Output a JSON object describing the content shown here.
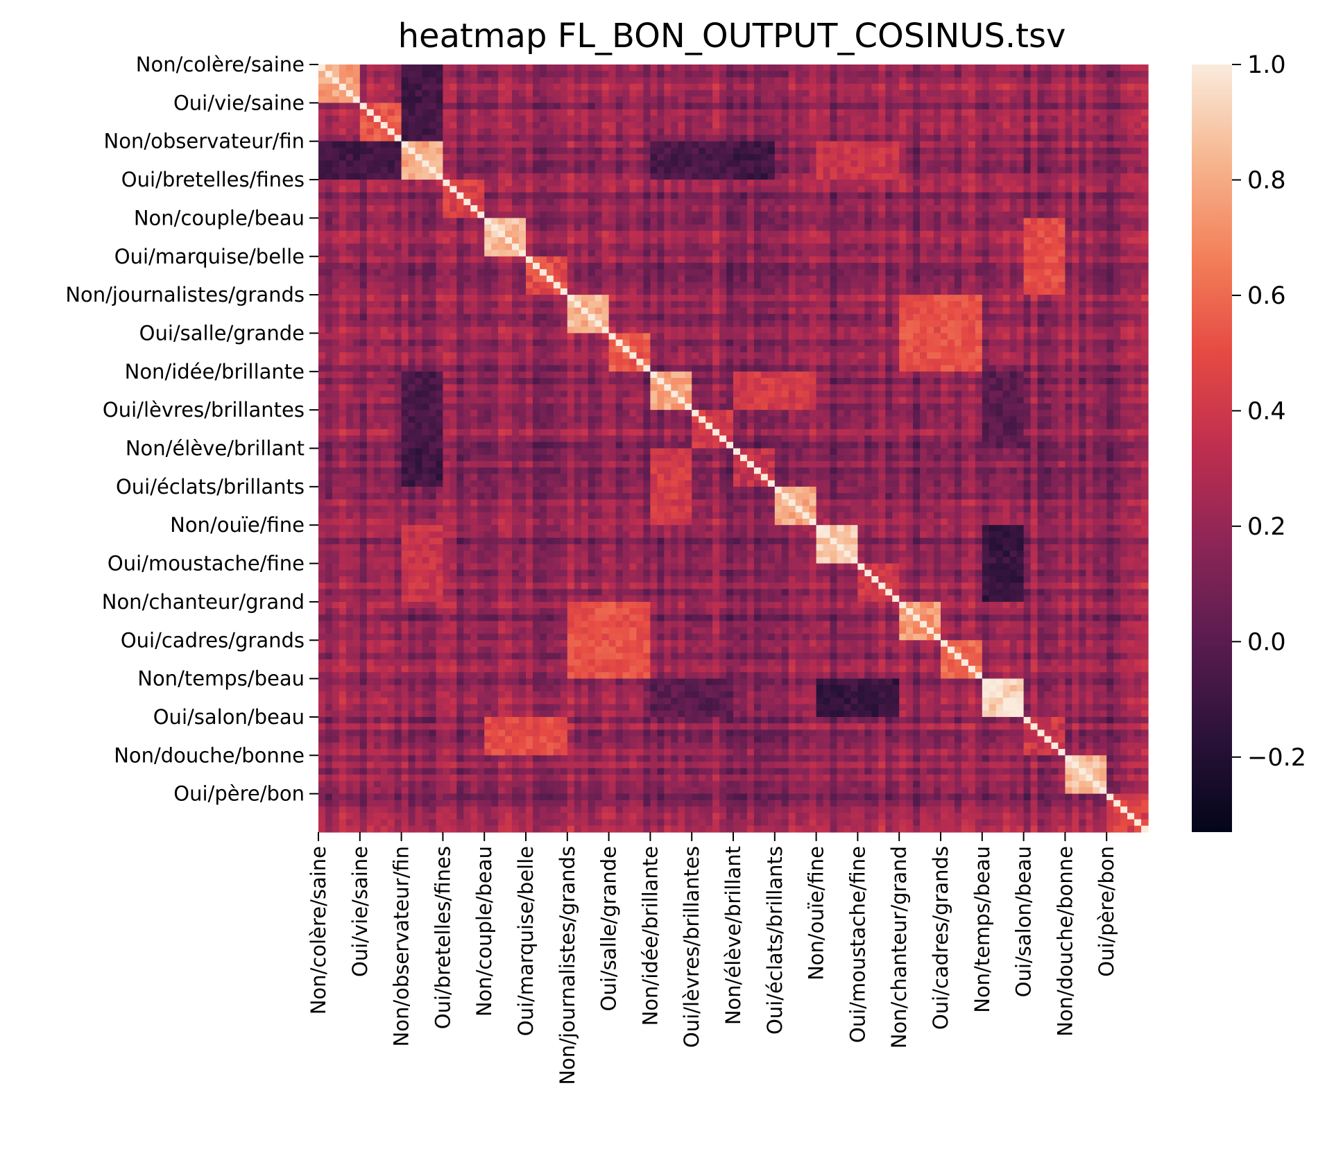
{
  "chart_data": {
    "type": "heatmap",
    "title": "heatmap FL_BON_OUTPUT_COSINUS.tsv",
    "xlabel": "",
    "ylabel": "",
    "n_cells": 120,
    "row_tick_labels": [
      "Non/colère/saine",
      "Oui/vie/saine",
      "Non/observateur/fin",
      "Oui/bretelles/fines",
      "Non/couple/beau",
      "Oui/marquise/belle",
      "Non/journalistes/grands",
      "Oui/salle/grande",
      "Non/idée/brillante",
      "Oui/lèvres/brillantes",
      "Non/élève/brillant",
      "Oui/éclats/brillants",
      "Non/ouïe/fine",
      "Oui/moustache/fine",
      "Non/chanteur/grand",
      "Oui/cadres/grands",
      "Non/temps/beau",
      "Oui/salon/beau",
      "Non/douche/bonne",
      "Oui/père/bon"
    ],
    "col_tick_labels": [
      "Non/colère/saine",
      "Oui/vie/saine",
      "Non/observateur/fin",
      "Oui/bretelles/fines",
      "Non/couple/beau",
      "Oui/marquise/belle",
      "Non/journalistes/grands",
      "Oui/salle/grande",
      "Non/idée/brillante",
      "Oui/lèvres/brillantes",
      "Non/élève/brillant",
      "Oui/éclats/brillants",
      "Non/ouïe/fine",
      "Oui/moustache/fine",
      "Non/chanteur/grand",
      "Oui/cadres/grands",
      "Non/temps/beau",
      "Oui/salon/beau",
      "Non/douche/bonne",
      "Oui/père/bon"
    ],
    "tick_every": 6,
    "diagonal_value": 1.0,
    "background_value": 0.18,
    "blocks": [
      {
        "start": 0,
        "end": 5,
        "value": 0.78
      },
      {
        "start": 6,
        "end": 11,
        "value": 0.55
      },
      {
        "start": 12,
        "end": 17,
        "value": 0.8
      },
      {
        "start": 18,
        "end": 23,
        "value": 0.45
      },
      {
        "start": 24,
        "end": 29,
        "value": 0.85
      },
      {
        "start": 30,
        "end": 35,
        "value": 0.5
      },
      {
        "start": 36,
        "end": 41,
        "value": 0.82
      },
      {
        "start": 42,
        "end": 47,
        "value": 0.55
      },
      {
        "start": 48,
        "end": 53,
        "value": 0.78
      },
      {
        "start": 54,
        "end": 59,
        "value": 0.4
      },
      {
        "start": 60,
        "end": 65,
        "value": 0.35
      },
      {
        "start": 66,
        "end": 71,
        "value": 0.8
      },
      {
        "start": 72,
        "end": 77,
        "value": 0.9
      },
      {
        "start": 78,
        "end": 83,
        "value": 0.4
      },
      {
        "start": 84,
        "end": 89,
        "value": 0.75
      },
      {
        "start": 90,
        "end": 95,
        "value": 0.6
      },
      {
        "start": 96,
        "end": 101,
        "value": 0.92
      },
      {
        "start": 102,
        "end": 107,
        "value": 0.4
      },
      {
        "start": 108,
        "end": 113,
        "value": 0.85
      },
      {
        "start": 114,
        "end": 119,
        "value": 0.45
      }
    ],
    "off_diagonal_blocks": [
      {
        "rows": [
          24,
          35
        ],
        "cols": [
          102,
          107
        ],
        "value": 0.5
      },
      {
        "rows": [
          36,
          47
        ],
        "cols": [
          84,
          95
        ],
        "value": 0.52
      },
      {
        "rows": [
          48,
          53
        ],
        "cols": [
          60,
          71
        ],
        "value": 0.42
      },
      {
        "rows": [
          12,
          17
        ],
        "cols": [
          72,
          83
        ],
        "value": 0.38
      },
      {
        "rows": [
          72,
          83
        ],
        "cols": [
          96,
          101
        ],
        "value": -0.12
      },
      {
        "rows": [
          12,
          17
        ],
        "cols": [
          0,
          11
        ],
        "value": -0.08
      },
      {
        "rows": [
          12,
          17
        ],
        "cols": [
          48,
          65
        ],
        "value": -0.05
      },
      {
        "rows": [
          60,
          65
        ],
        "cols": [
          12,
          17
        ],
        "value": -0.1
      },
      {
        "rows": [
          96,
          101
        ],
        "cols": [
          48,
          59
        ],
        "value": 0.0
      }
    ],
    "colorbar": {
      "min": -0.33,
      "max": 1.0,
      "ticks": [
        "1.0",
        "0.8",
        "0.6",
        "0.4",
        "0.2",
        "0.0",
        "−0.2"
      ],
      "tick_values": [
        1.0,
        0.8,
        0.6,
        0.4,
        0.2,
        0.0,
        -0.2
      ]
    },
    "colormap": "rocket",
    "colormap_stops": [
      "#03051a",
      "#2b1239",
      "#5a1c4f",
      "#8c2556",
      "#be2e4f",
      "#e64a43",
      "#f3805a",
      "#f6b68f",
      "#faebdd"
    ]
  }
}
